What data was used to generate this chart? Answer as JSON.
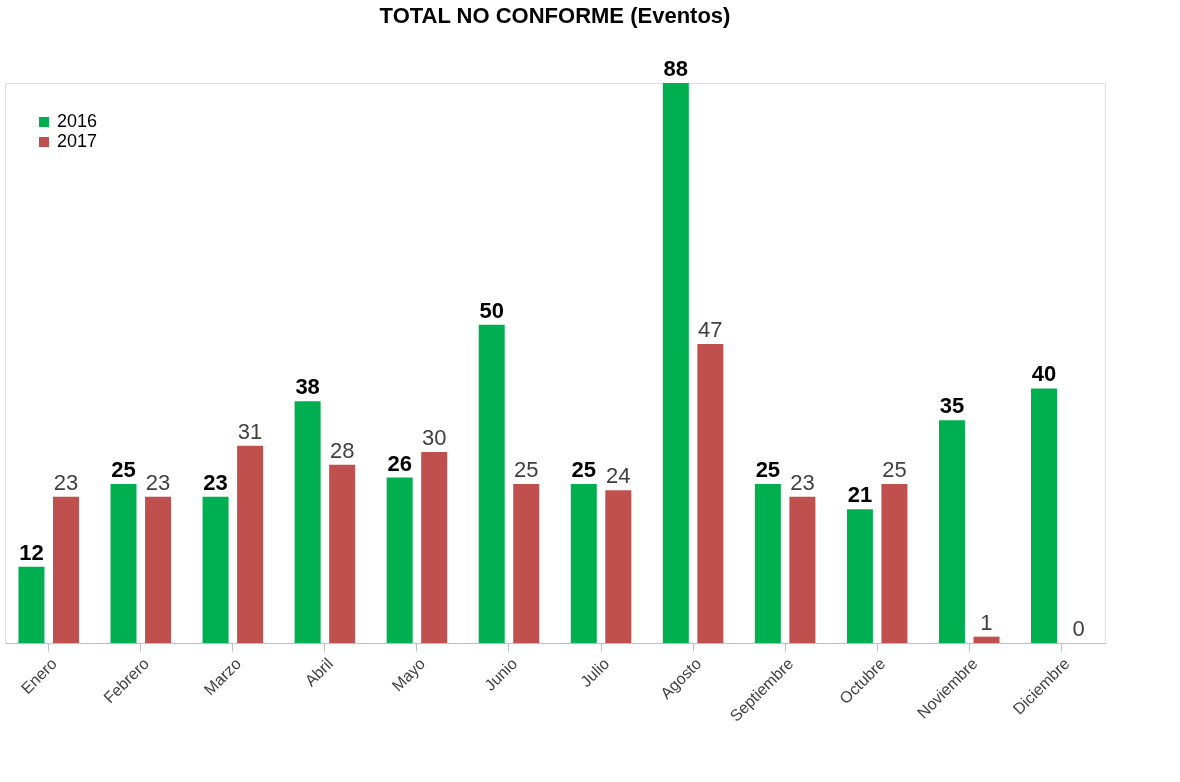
{
  "chart_data": {
    "type": "bar",
    "title": "TOTAL NO CONFORME (Eventos)",
    "categories": [
      "Enero",
      "Febrero",
      "Marzo",
      "Abril",
      "Mayo",
      "Junio",
      "Julio",
      "Agosto",
      "Septiembre",
      "Octubre",
      "Noviembre",
      "Diciembre"
    ],
    "series": [
      {
        "name": "2016",
        "color": "#00b050",
        "values": [
          12,
          25,
          23,
          38,
          26,
          50,
          25,
          88,
          25,
          21,
          35,
          40
        ]
      },
      {
        "name": "2017",
        "color": "#c0504d",
        "values": [
          23,
          23,
          31,
          28,
          30,
          25,
          24,
          47,
          23,
          25,
          1,
          0
        ]
      }
    ],
    "data_labels": true,
    "legend": "top left",
    "grid": false
  }
}
